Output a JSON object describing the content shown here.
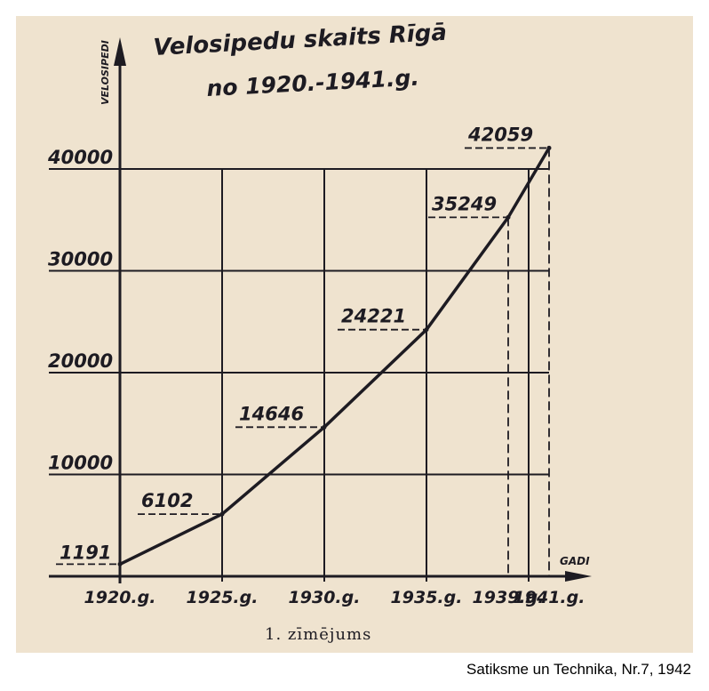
{
  "chart_data": {
    "type": "line",
    "title": "Velosipedu skaits Rīgā",
    "subtitle": "no 1920.-1941.g.",
    "ylabel": "VELOSIPEDI",
    "xlabel": "GADI",
    "caption": "1. zīmējums",
    "ylim": [
      0,
      45000
    ],
    "xlim": [
      1920,
      1941.4
    ],
    "x_ticks": [
      {
        "value": 1920,
        "label": "1920.g."
      },
      {
        "value": 1925,
        "label": "1925.g."
      },
      {
        "value": 1930,
        "label": "1930.g."
      },
      {
        "value": 1935,
        "label": "1935.g."
      },
      {
        "value": 1939,
        "label": "1939.g."
      },
      {
        "value": 1941,
        "label": "1941.g."
      }
    ],
    "y_ticks": [
      {
        "value": 10000,
        "label": "10000"
      },
      {
        "value": 20000,
        "label": "20000"
      },
      {
        "value": 30000,
        "label": "30000"
      },
      {
        "value": 40000,
        "label": "40000"
      }
    ],
    "x_gridlines": [
      1925,
      1930,
      1935,
      1940
    ],
    "grid": true,
    "legend": "none",
    "series": [
      {
        "points": [
          {
            "x": 1920,
            "y": 1191,
            "label": "1191"
          },
          {
            "x": 1925,
            "y": 6102,
            "label": "6102"
          },
          {
            "x": 1930,
            "y": 14646,
            "label": "14646"
          },
          {
            "x": 1935,
            "y": 24221,
            "label": "24221"
          },
          {
            "x": 1939,
            "y": 35249,
            "label": "35249"
          },
          {
            "x": 1941,
            "y": 42059,
            "label": "42059"
          }
        ]
      }
    ]
  },
  "source": "Satiksme un Technika, Nr.7, 1942",
  "colors": {
    "paper": "#efe3cf",
    "ink": "#1d1b22",
    "background": "#ffffff"
  }
}
